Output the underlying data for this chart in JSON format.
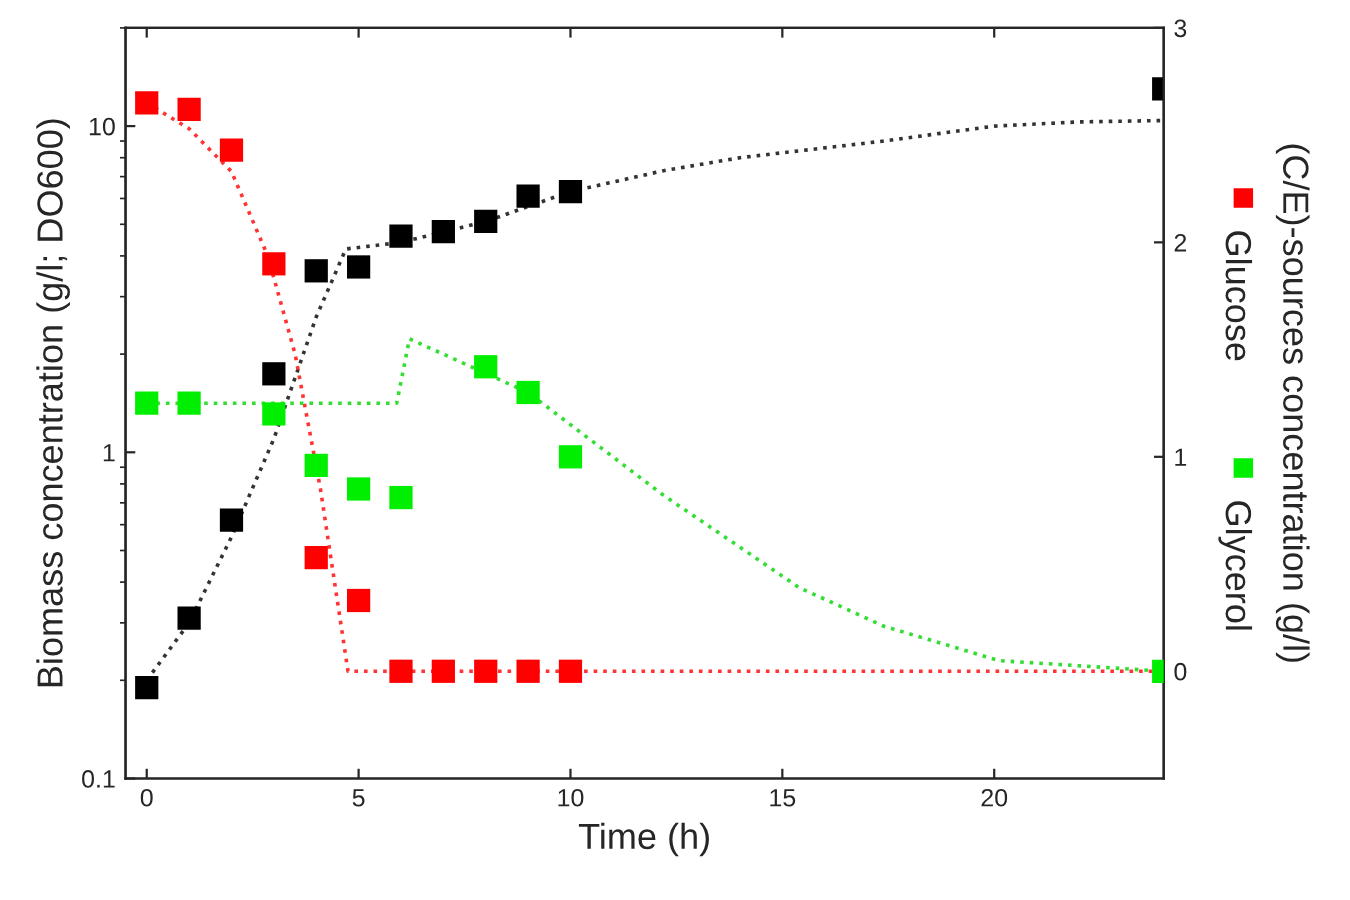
{
  "chart_data": {
    "type": "scatter",
    "xlabel": "Time (h)",
    "ylabel": "Biomass concentration (g/l; DO600)",
    "y2label": "(C/E)-sources concentration (g/l)",
    "xlim": [
      -0.5,
      24
    ],
    "xticks": [
      0,
      5,
      10,
      15,
      20
    ],
    "ylim": [
      0.1,
      20
    ],
    "yticks": [
      0.1,
      1,
      10
    ],
    "y2lim": [
      -0.5,
      3
    ],
    "y2ticks": [
      0,
      1,
      2,
      3
    ],
    "log": "y",
    "grid": false,
    "legend": "right",
    "series": [
      {
        "type": "line",
        "marker": "none",
        "axis": "y",
        "color": "#333333",
        "line_style": "dotted",
        "x": [
          0,
          1,
          2,
          3,
          4,
          4.7,
          6,
          8,
          10,
          12.2,
          14,
          17.4,
          20,
          22,
          24
        ],
        "values": [
          0.2,
          0.3,
          0.55,
          1.1,
          2.6,
          4.2,
          4.4,
          5.1,
          6.3,
          7.3,
          8.0,
          9.0,
          10.0,
          10.3,
          10.4
        ]
      },
      {
        "type": "line",
        "marker": "none",
        "axis": "y2",
        "color": "#ff3333",
        "line_style": "dotted",
        "x": [
          0,
          1,
          2,
          2.85,
          3.5,
          4.1,
          4.75,
          24
        ],
        "values": [
          2.65,
          2.53,
          2.33,
          1.94,
          1.48,
          0.85,
          0,
          0
        ]
      },
      {
        "type": "line",
        "marker": "none",
        "axis": "y2",
        "color": "#33dd33",
        "line_style": "dotted",
        "x": [
          0,
          5.9,
          6.2,
          9,
          12.2,
          15.4,
          17.4,
          20.1,
          24
        ],
        "values": [
          1.25,
          1.25,
          1.55,
          1.3,
          0.82,
          0.39,
          0.21,
          0.05,
          0
        ]
      },
      {
        "marker": "square",
        "axis": "y",
        "color": "#000000",
        "x": [
          0,
          1,
          2,
          3,
          4,
          5,
          6,
          7,
          8,
          9,
          10,
          24
        ],
        "values": [
          0.19,
          0.31,
          0.62,
          1.74,
          3.6,
          3.7,
          4.6,
          4.75,
          5.1,
          6.1,
          6.3,
          13
        ]
      },
      {
        "marker": "square",
        "axis": "y2",
        "name": "Glucose",
        "color": "#ff0000",
        "x": [
          0,
          1,
          2,
          3,
          4,
          5,
          6,
          7,
          8,
          9,
          10
        ],
        "values": [
          2.65,
          2.62,
          2.43,
          1.9,
          0.53,
          0.33,
          0,
          0,
          0,
          0,
          0
        ]
      },
      {
        "marker": "square",
        "axis": "y2",
        "name": "Glycerol",
        "color": "#00ee00",
        "x": [
          0,
          1,
          3,
          4,
          5,
          6,
          8,
          9,
          10,
          24
        ],
        "values": [
          1.25,
          1.25,
          1.2,
          0.96,
          0.85,
          0.81,
          1.42,
          1.3,
          1.0,
          0
        ]
      }
    ]
  }
}
